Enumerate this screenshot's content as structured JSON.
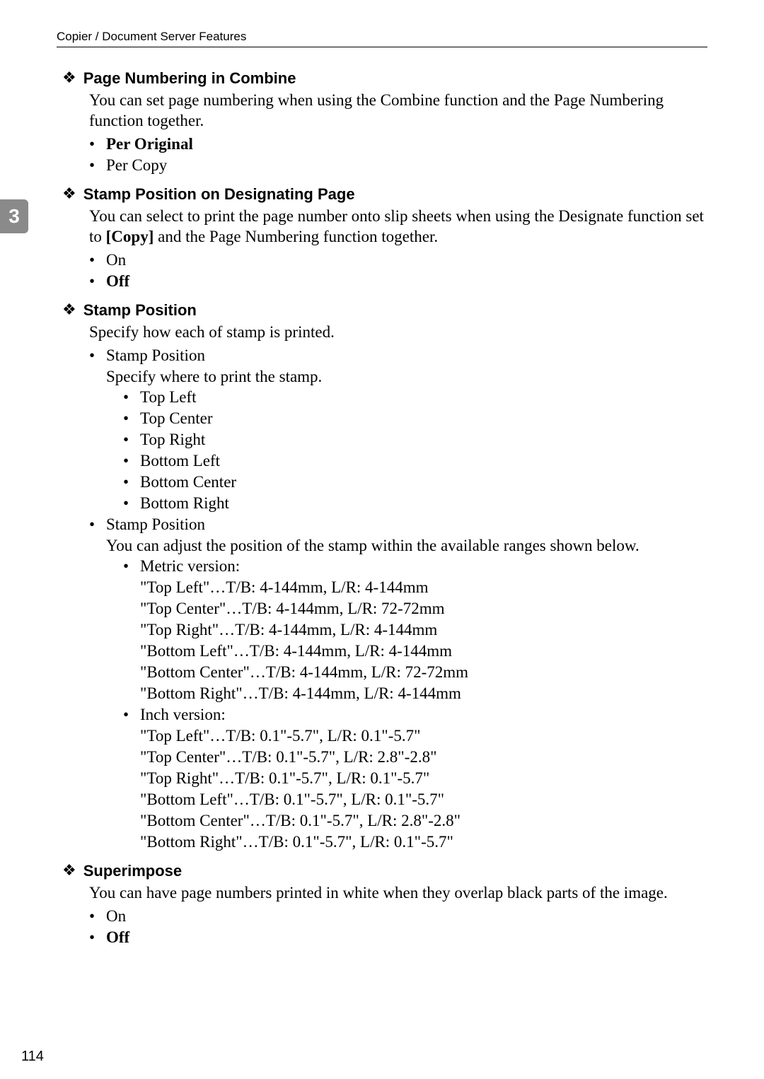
{
  "page": {
    "running_header": "Copier / Document Server Features",
    "side_tab": "3",
    "page_number": "114"
  },
  "sections": {
    "pnc": {
      "title": "Page Numbering in Combine",
      "body": "You can set page numbering when using the Combine function and the Page Numbering function together.",
      "items": [
        {
          "label": "Per Original",
          "bold": true
        },
        {
          "label": "Per Copy",
          "bold": false
        }
      ]
    },
    "spdp": {
      "title": "Stamp Position on Designating Page",
      "body_pre": "You can select to print the page number onto slip sheets when using the Designate function set to ",
      "body_bold": "[Copy]",
      "body_post": " and the Page Numbering function together.",
      "items": [
        {
          "label": "On",
          "bold": false
        },
        {
          "label": "Off",
          "bold": true
        }
      ]
    },
    "sp": {
      "title": "Stamp Position",
      "body": "Specify how each of stamp is printed.",
      "group1": {
        "label": "Stamp Position",
        "desc": "Specify where to print the stamp.",
        "items": [
          "Top Left",
          "Top Center",
          "Top Right",
          "Bottom Left",
          "Bottom Center",
          "Bottom Right"
        ]
      },
      "group2": {
        "label": "Stamp Position",
        "desc": "You can adjust the position of the stamp within the available ranges shown below.",
        "metric": {
          "label": "Metric version:",
          "lines": [
            "\"Top Left\"…T/B: 4-144mm, L/R: 4-144mm",
            "\"Top Center\"…T/B: 4-144mm, L/R: 72-72mm",
            "\"Top Right\"…T/B: 4-144mm, L/R: 4-144mm",
            "\"Bottom Left\"…T/B: 4-144mm, L/R: 4-144mm",
            "\"Bottom Center\"…T/B: 4-144mm, L/R: 72-72mm",
            "\"Bottom Right\"…T/B: 4-144mm, L/R: 4-144mm"
          ]
        },
        "inch": {
          "label": "Inch version:",
          "lines": [
            "\"Top Left\"…T/B: 0.1\"-5.7\", L/R: 0.1\"-5.7\"",
            "\"Top Center\"…T/B: 0.1\"-5.7\", L/R: 2.8\"-2.8\"",
            "\"Top Right\"…T/B: 0.1\"-5.7\", L/R: 0.1\"-5.7\"",
            "\"Bottom Left\"…T/B: 0.1\"-5.7\", L/R: 0.1\"-5.7\"",
            "\"Bottom Center\"…T/B: 0.1\"-5.7\", L/R: 2.8\"-2.8\"",
            "\"Bottom Right\"…T/B: 0.1\"-5.7\", L/R: 0.1\"-5.7\""
          ]
        }
      }
    },
    "si": {
      "title": "Superimpose",
      "body": "You can have page numbers printed in white when they overlap black parts of the image.",
      "items": [
        {
          "label": "On",
          "bold": false
        },
        {
          "label": "Off",
          "bold": true
        }
      ]
    }
  }
}
